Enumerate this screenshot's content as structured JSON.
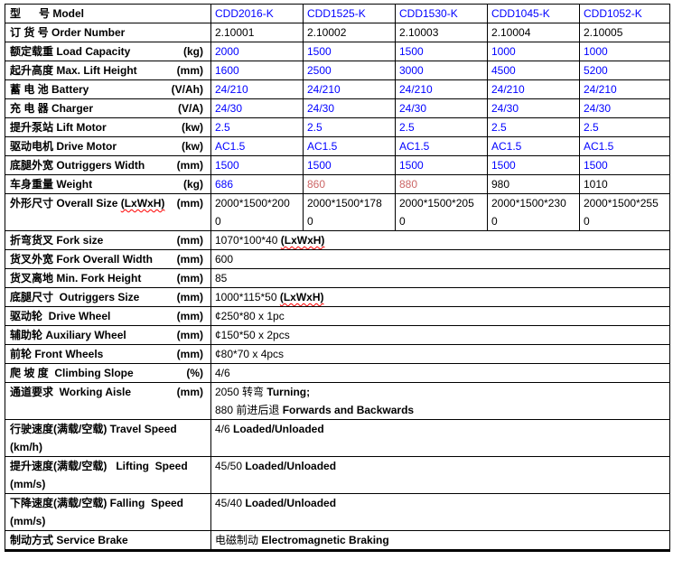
{
  "colors": {
    "blue": "#0000ff",
    "red": "#cc6666",
    "black": "#000000",
    "squiggle": "#ff0000",
    "border": "#000000"
  },
  "table": {
    "rows": [
      {
        "name": "model",
        "label": [
          {
            "t": "型      号 Model"
          }
        ],
        "unit": "",
        "unit_newline": false,
        "merged": false,
        "cells": [
          {
            "c": "blue",
            "parts": [
              {
                "t": "CDD2016-K"
              }
            ]
          },
          {
            "c": "blue",
            "parts": [
              {
                "t": "CDD1525-K"
              }
            ]
          },
          {
            "c": "blue",
            "parts": [
              {
                "t": "CDD1530-K"
              }
            ]
          },
          {
            "c": "blue",
            "parts": [
              {
                "t": "CDD1045-K"
              }
            ]
          },
          {
            "c": "blue",
            "parts": [
              {
                "t": "CDD1052-K"
              }
            ]
          }
        ]
      },
      {
        "name": "order-number",
        "label": [
          {
            "t": "订 货 号 Order Number"
          }
        ],
        "unit": "",
        "unit_newline": false,
        "merged": false,
        "cells": [
          {
            "c": "black",
            "parts": [
              {
                "t": "2.10001"
              }
            ]
          },
          {
            "c": "black",
            "parts": [
              {
                "t": "2.10002"
              }
            ]
          },
          {
            "c": "black",
            "parts": [
              {
                "t": "2.10003"
              }
            ]
          },
          {
            "c": "black",
            "parts": [
              {
                "t": "2.10004"
              }
            ]
          },
          {
            "c": "black",
            "parts": [
              {
                "t": "2.10005"
              }
            ]
          }
        ]
      },
      {
        "name": "load-capacity",
        "label": [
          {
            "t": "额定载重 Load Capacity"
          }
        ],
        "unit": "(kg)",
        "unit_newline": false,
        "merged": false,
        "cells": [
          {
            "c": "blue",
            "parts": [
              {
                "t": "2000"
              }
            ]
          },
          {
            "c": "blue",
            "parts": [
              {
                "t": "1500"
              }
            ]
          },
          {
            "c": "blue",
            "parts": [
              {
                "t": "1500"
              }
            ]
          },
          {
            "c": "blue",
            "parts": [
              {
                "t": "1000"
              }
            ]
          },
          {
            "c": "blue",
            "parts": [
              {
                "t": "1000"
              }
            ]
          }
        ]
      },
      {
        "name": "lift-height",
        "label": [
          {
            "t": "起升高度 Max. Lift Height"
          }
        ],
        "unit": "(mm)",
        "unit_newline": false,
        "merged": false,
        "cells": [
          {
            "c": "blue",
            "parts": [
              {
                "t": "1600"
              }
            ]
          },
          {
            "c": "blue",
            "parts": [
              {
                "t": "2500"
              }
            ]
          },
          {
            "c": "blue",
            "parts": [
              {
                "t": "3000"
              }
            ]
          },
          {
            "c": "blue",
            "parts": [
              {
                "t": "4500"
              }
            ]
          },
          {
            "c": "blue",
            "parts": [
              {
                "t": "5200"
              }
            ]
          }
        ]
      },
      {
        "name": "battery",
        "label": [
          {
            "t": "蓄 电 池 Battery"
          }
        ],
        "unit": "(V/Ah)",
        "unit_newline": false,
        "merged": false,
        "cells": [
          {
            "c": "blue",
            "parts": [
              {
                "t": "24/210"
              }
            ]
          },
          {
            "c": "blue",
            "parts": [
              {
                "t": "24/210"
              }
            ]
          },
          {
            "c": "blue",
            "parts": [
              {
                "t": "24/210"
              }
            ]
          },
          {
            "c": "blue",
            "parts": [
              {
                "t": "24/210"
              }
            ]
          },
          {
            "c": "blue",
            "parts": [
              {
                "t": "24/210"
              }
            ]
          }
        ]
      },
      {
        "name": "charger",
        "label": [
          {
            "t": "充 电 器 Charger"
          }
        ],
        "unit": "(V/A)",
        "unit_newline": false,
        "merged": false,
        "cells": [
          {
            "c": "blue",
            "parts": [
              {
                "t": "24/30"
              }
            ]
          },
          {
            "c": "blue",
            "parts": [
              {
                "t": "24/30"
              }
            ]
          },
          {
            "c": "blue",
            "parts": [
              {
                "t": "24/30"
              }
            ]
          },
          {
            "c": "blue",
            "parts": [
              {
                "t": "24/30"
              }
            ]
          },
          {
            "c": "blue",
            "parts": [
              {
                "t": "24/30"
              }
            ]
          }
        ]
      },
      {
        "name": "lift-motor",
        "label": [
          {
            "t": "提升泵站 Lift Motor"
          }
        ],
        "unit": "(kw)",
        "unit_newline": false,
        "merged": false,
        "cells": [
          {
            "c": "blue",
            "parts": [
              {
                "t": "2.5"
              }
            ]
          },
          {
            "c": "blue",
            "parts": [
              {
                "t": "2.5"
              }
            ]
          },
          {
            "c": "blue",
            "parts": [
              {
                "t": "2.5"
              }
            ]
          },
          {
            "c": "blue",
            "parts": [
              {
                "t": "2.5"
              }
            ]
          },
          {
            "c": "blue",
            "parts": [
              {
                "t": "2.5"
              }
            ]
          }
        ]
      },
      {
        "name": "drive-motor",
        "label": [
          {
            "t": "驱动电机 Drive Motor"
          }
        ],
        "unit": "(kw)",
        "unit_newline": false,
        "merged": false,
        "cells": [
          {
            "c": "blue",
            "parts": [
              {
                "t": "AC1.5"
              }
            ]
          },
          {
            "c": "blue",
            "parts": [
              {
                "t": "AC1.5"
              }
            ]
          },
          {
            "c": "blue",
            "parts": [
              {
                "t": "AC1.5"
              }
            ]
          },
          {
            "c": "blue",
            "parts": [
              {
                "t": "AC1.5"
              }
            ]
          },
          {
            "c": "blue",
            "parts": [
              {
                "t": "AC1.5"
              }
            ]
          }
        ]
      },
      {
        "name": "outriggers-width",
        "label": [
          {
            "t": "底腿外宽 Outriggers Width"
          }
        ],
        "unit": "(mm)",
        "unit_newline": false,
        "merged": false,
        "cells": [
          {
            "c": "blue",
            "parts": [
              {
                "t": "1500"
              }
            ]
          },
          {
            "c": "blue",
            "parts": [
              {
                "t": "1500"
              }
            ]
          },
          {
            "c": "blue",
            "parts": [
              {
                "t": "1500"
              }
            ]
          },
          {
            "c": "blue",
            "parts": [
              {
                "t": "1500"
              }
            ]
          },
          {
            "c": "blue",
            "parts": [
              {
                "t": "1500"
              }
            ]
          }
        ]
      },
      {
        "name": "weight",
        "label": [
          {
            "t": "车身重量 Weight"
          }
        ],
        "unit": "(kg)",
        "unit_newline": false,
        "merged": false,
        "cells": [
          {
            "c": "blue",
            "parts": [
              {
                "t": "686"
              }
            ]
          },
          {
            "c": "red",
            "parts": [
              {
                "t": "860"
              }
            ]
          },
          {
            "c": "red",
            "parts": [
              {
                "t": "880"
              }
            ]
          },
          {
            "c": "black",
            "parts": [
              {
                "t": "980"
              }
            ]
          },
          {
            "c": "black",
            "parts": [
              {
                "t": "1010"
              }
            ]
          }
        ]
      },
      {
        "name": "overall-size",
        "label": [
          {
            "t": "外形尺寸 Overall Size "
          },
          {
            "t": "(LxWxH)",
            "sq": true
          }
        ],
        "unit": "(mm)",
        "unit_newline": false,
        "merged": false,
        "cells": [
          {
            "c": "black",
            "parts": [
              {
                "t": "2000*1500*2000"
              }
            ]
          },
          {
            "c": "black",
            "parts": [
              {
                "t": "2000*1500*1780"
              }
            ]
          },
          {
            "c": "black",
            "parts": [
              {
                "t": "2000*1500*2050"
              }
            ]
          },
          {
            "c": "black",
            "parts": [
              {
                "t": "2000*1500*2300"
              }
            ]
          },
          {
            "c": "black",
            "parts": [
              {
                "t": "2000*1500*2550"
              }
            ]
          }
        ]
      },
      {
        "name": "fork-size",
        "label": [
          {
            "t": "折弯货叉 Fork size"
          }
        ],
        "unit": "(mm)",
        "unit_newline": false,
        "merged": true,
        "cells": [
          {
            "c": "black",
            "parts": [
              {
                "t": "1070*100*40 "
              },
              {
                "t": "(LxWxH)",
                "b": true,
                "sq": true
              }
            ]
          }
        ]
      },
      {
        "name": "fork-overall-width",
        "label": [
          {
            "t": "货叉外宽 Fork Overall Width"
          }
        ],
        "unit": "(mm)",
        "unit_newline": false,
        "merged": true,
        "cells": [
          {
            "c": "black",
            "parts": [
              {
                "t": "600"
              }
            ]
          }
        ]
      },
      {
        "name": "min-fork-height",
        "label": [
          {
            "t": "货叉离地 Min. Fork Height"
          }
        ],
        "unit": "(mm)",
        "unit_newline": false,
        "merged": true,
        "cells": [
          {
            "c": "black",
            "parts": [
              {
                "t": "85"
              }
            ]
          }
        ]
      },
      {
        "name": "outriggers-size",
        "label": [
          {
            "t": "底腿尺寸  Outriggers Size"
          }
        ],
        "unit": "(mm)",
        "unit_newline": false,
        "merged": true,
        "cells": [
          {
            "c": "black",
            "parts": [
              {
                "t": "1000*115*50 "
              },
              {
                "t": "(LxWxH)",
                "b": true,
                "sq": true
              }
            ]
          }
        ]
      },
      {
        "name": "drive-wheel",
        "label": [
          {
            "t": "驱动轮  Drive Wheel"
          }
        ],
        "unit": "(mm)",
        "unit_newline": false,
        "merged": true,
        "cells": [
          {
            "c": "black",
            "parts": [
              {
                "t": "¢250*80 x 1pc"
              }
            ]
          }
        ]
      },
      {
        "name": "auxiliary-wheel",
        "label": [
          {
            "t": "辅助轮 Auxiliary Wheel"
          }
        ],
        "unit": "(mm)",
        "unit_newline": false,
        "merged": true,
        "cells": [
          {
            "c": "black",
            "parts": [
              {
                "t": "¢150*50 x 2pcs"
              }
            ]
          }
        ]
      },
      {
        "name": "front-wheels",
        "label": [
          {
            "t": "前轮 Front Wheels"
          }
        ],
        "unit": "(mm)",
        "unit_newline": false,
        "merged": true,
        "cells": [
          {
            "c": "black",
            "parts": [
              {
                "t": "¢80*70 x 4pcs"
              }
            ]
          }
        ]
      },
      {
        "name": "climbing-slope",
        "label": [
          {
            "t": "爬 坡 度  Climbing Slope"
          }
        ],
        "unit": "(%)",
        "unit_newline": false,
        "merged": true,
        "cells": [
          {
            "c": "black",
            "parts": [
              {
                "t": "4/6"
              }
            ]
          }
        ]
      },
      {
        "name": "working-aisle",
        "label": [
          {
            "t": "通道要求  Working Aisle"
          }
        ],
        "unit": "(mm)",
        "unit_newline": false,
        "merged": true,
        "cells": [
          {
            "c": "black",
            "parts": [
              {
                "t": "2050 转弯 "
              },
              {
                "t": "Turning;",
                "b": true
              },
              {
                "t": "\n"
              },
              {
                "t": "880 前进后退 "
              },
              {
                "t": "Forwards and Backwards",
                "b": true
              }
            ]
          }
        ]
      },
      {
        "name": "travel-speed",
        "label": [
          {
            "t": "行驶速度(满载/空载) Travel Speed"
          }
        ],
        "unit": "(km/h)",
        "unit_newline": true,
        "merged": true,
        "cells": [
          {
            "c": "black",
            "parts": [
              {
                "t": "4/6 "
              },
              {
                "t": "Loaded/Unloaded",
                "b": true
              }
            ]
          }
        ]
      },
      {
        "name": "lifting-speed",
        "label": [
          {
            "t": "提升速度(满载/空载)   Lifting  Speed"
          }
        ],
        "unit": "(mm/s)",
        "unit_newline": true,
        "merged": true,
        "cells": [
          {
            "c": "black",
            "parts": [
              {
                "t": "45/50 "
              },
              {
                "t": "Loaded/Unloaded",
                "b": true
              }
            ]
          }
        ]
      },
      {
        "name": "falling-speed",
        "label": [
          {
            "t": "下降速度(满载/空载) Falling  Speed"
          }
        ],
        "unit": "(mm/s)",
        "unit_newline": true,
        "merged": true,
        "cells": [
          {
            "c": "black",
            "parts": [
              {
                "t": "45/40 "
              },
              {
                "t": "Loaded/Unloaded",
                "b": true
              }
            ]
          }
        ]
      },
      {
        "name": "service-brake",
        "label": [
          {
            "t": "制动方式 Service Brake"
          }
        ],
        "unit": "",
        "unit_newline": false,
        "merged": true,
        "cells": [
          {
            "c": "black",
            "parts": [
              {
                "t": "电磁制动 "
              },
              {
                "t": "Electromagnetic Braking",
                "b": true
              }
            ]
          }
        ]
      }
    ]
  }
}
